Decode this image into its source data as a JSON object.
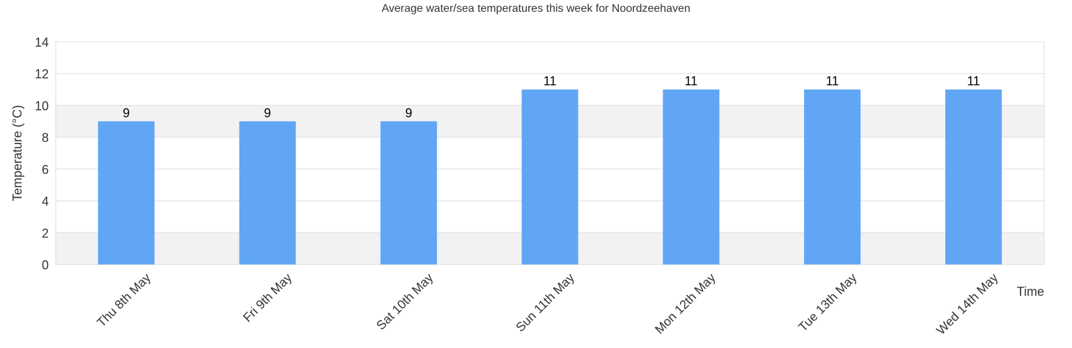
{
  "chart_data": {
    "type": "bar",
    "title": "Average water/sea temperatures this week for Noordzeehaven",
    "xlabel": "Time",
    "ylabel": "Temperature (°C)",
    "categories": [
      "Thu 8th May",
      "Fri 9th May",
      "Sat 10th May",
      "Sun 11th May",
      "Mon 12th May",
      "Tue 13th May",
      "Wed 14th May"
    ],
    "values": [
      9,
      9,
      9,
      11,
      11,
      11,
      11
    ],
    "data_labels": [
      "9",
      "9",
      "9",
      "11",
      "11",
      "11",
      "11"
    ],
    "ylim": [
      0,
      14
    ],
    "yticks": [
      0,
      2,
      4,
      6,
      8,
      10,
      12,
      14
    ],
    "grid": true,
    "legend": "none",
    "colors": {
      "bar": "#60a6f4",
      "band": "#f2f2f2",
      "grid": "#dddddd",
      "text": "#333333"
    }
  }
}
